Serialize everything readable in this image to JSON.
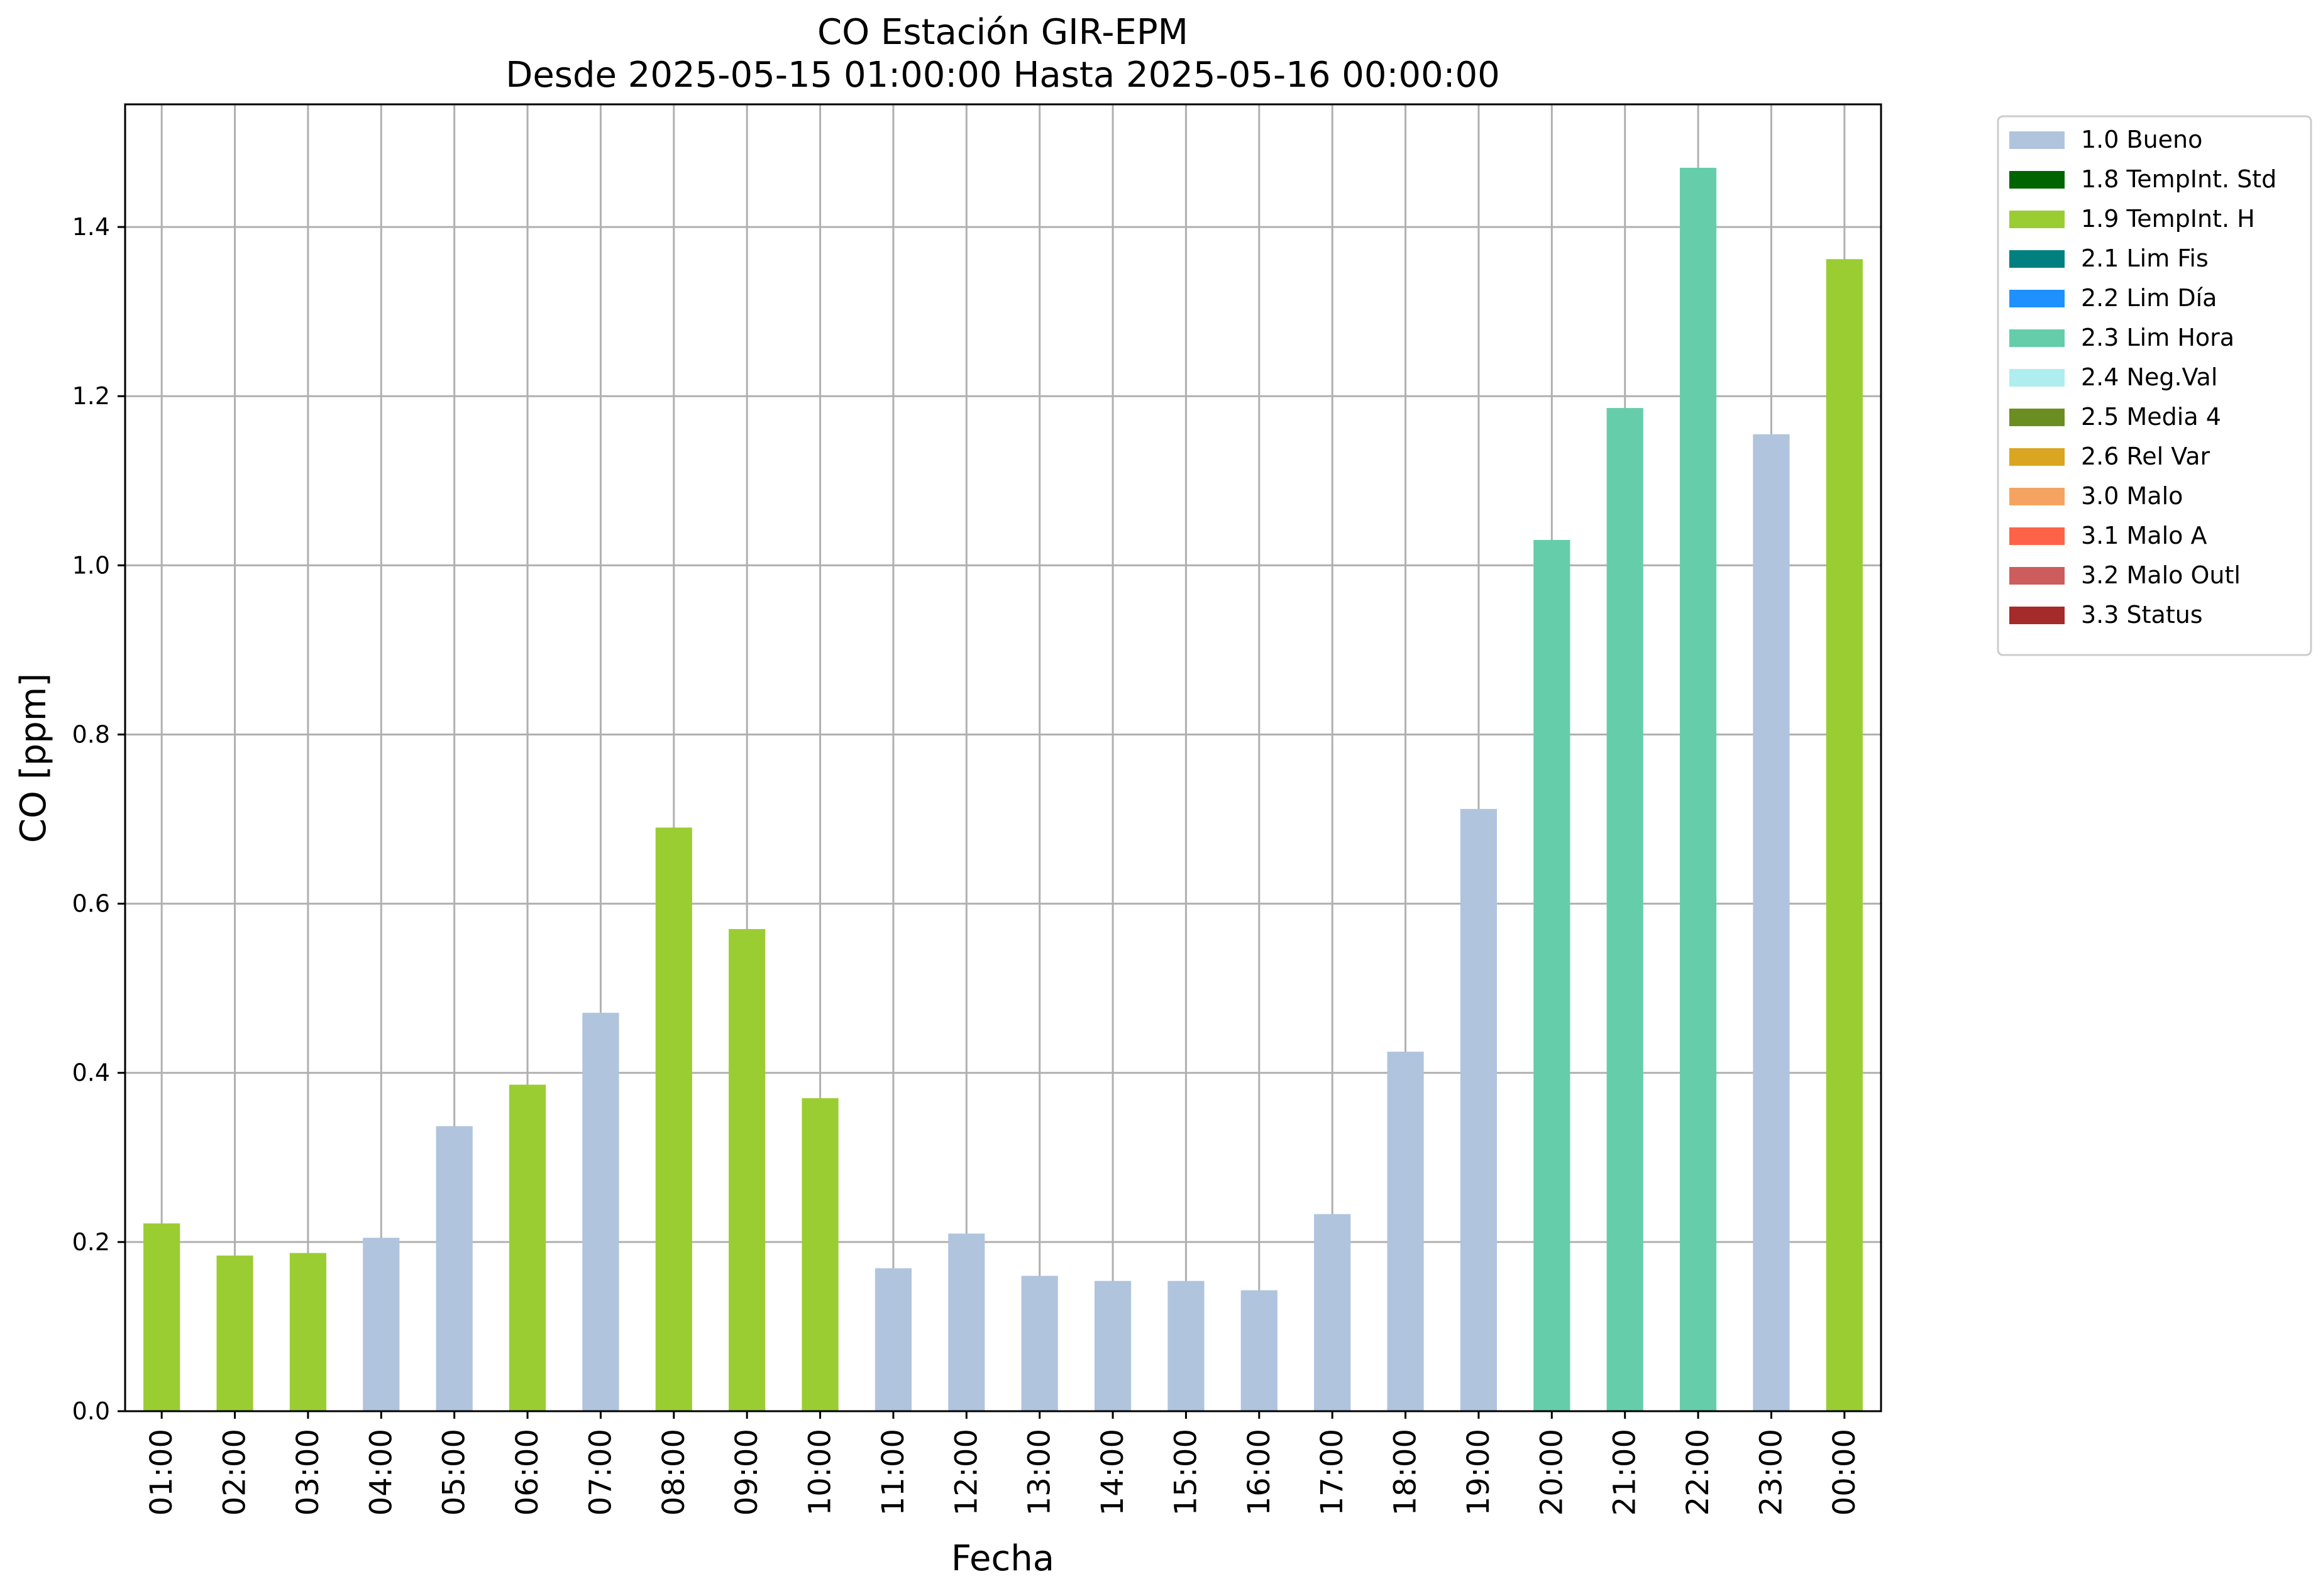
{
  "chart_data": {
    "type": "bar",
    "title": "CO Estación GIR-EPM",
    "subtitle": "Desde 2025-05-15 01:00:00 Hasta 2025-05-16 00:00:00",
    "xlabel": "Fecha",
    "ylabel": "CO [ppm]",
    "ylim": [
      0,
      1.545
    ],
    "yticks": [
      "0.0",
      "0.2",
      "0.4",
      "0.6",
      "0.8",
      "1.0",
      "1.2",
      "1.4"
    ],
    "grid": true,
    "legend_position": "outside-right-top",
    "categories": [
      "01:00",
      "02:00",
      "03:00",
      "04:00",
      "05:00",
      "06:00",
      "07:00",
      "08:00",
      "09:00",
      "10:00",
      "11:00",
      "12:00",
      "13:00",
      "14:00",
      "15:00",
      "16:00",
      "17:00",
      "18:00",
      "19:00",
      "20:00",
      "21:00",
      "22:00",
      "23:00",
      "00:00"
    ],
    "values": [
      0.222,
      0.184,
      0.187,
      0.205,
      0.337,
      0.386,
      0.471,
      0.69,
      0.57,
      0.37,
      0.169,
      0.21,
      0.16,
      0.154,
      0.154,
      0.143,
      0.233,
      0.425,
      0.712,
      1.03,
      1.186,
      1.47,
      1.155,
      1.362
    ],
    "flags": [
      "1.9 TempInt. H",
      "1.9 TempInt. H",
      "1.9 TempInt. H",
      "1.0 Bueno",
      "1.0 Bueno",
      "1.9 TempInt. H",
      "1.0 Bueno",
      "1.9 TempInt. H",
      "1.9 TempInt. H",
      "1.9 TempInt. H",
      "1.0 Bueno",
      "1.0 Bueno",
      "1.0 Bueno",
      "1.0 Bueno",
      "1.0 Bueno",
      "1.0 Bueno",
      "1.0 Bueno",
      "1.0 Bueno",
      "1.0 Bueno",
      "2.3 Lim Hora",
      "2.3 Lim Hora",
      "2.3 Lim Hora",
      "1.0 Bueno",
      "1.9 TempInt. H"
    ],
    "legend": [
      {
        "name": "1.0 Bueno",
        "color": "#b0c4de"
      },
      {
        "name": "1.8 TempInt. Std",
        "color": "#006400"
      },
      {
        "name": "1.9 TempInt. H",
        "color": "#9acd32"
      },
      {
        "name": "2.1 Lim Fis",
        "color": "#008080"
      },
      {
        "name": "2.2 Lim Día",
        "color": "#1e90ff"
      },
      {
        "name": "2.3 Lim Hora",
        "color": "#66cdaa"
      },
      {
        "name": "2.4 Neg.Val",
        "color": "#afeeee"
      },
      {
        "name": "2.5 Media 4",
        "color": "#6b8e23"
      },
      {
        "name": "2.6 Rel Var",
        "color": "#daa520"
      },
      {
        "name": "3.0 Malo",
        "color": "#f4a460"
      },
      {
        "name": "3.1 Malo A",
        "color": "#ff6347"
      },
      {
        "name": "3.2 Malo Outl",
        "color": "#cd5c5c"
      },
      {
        "name": "3.3 Status",
        "color": "#a52a2a"
      }
    ]
  }
}
